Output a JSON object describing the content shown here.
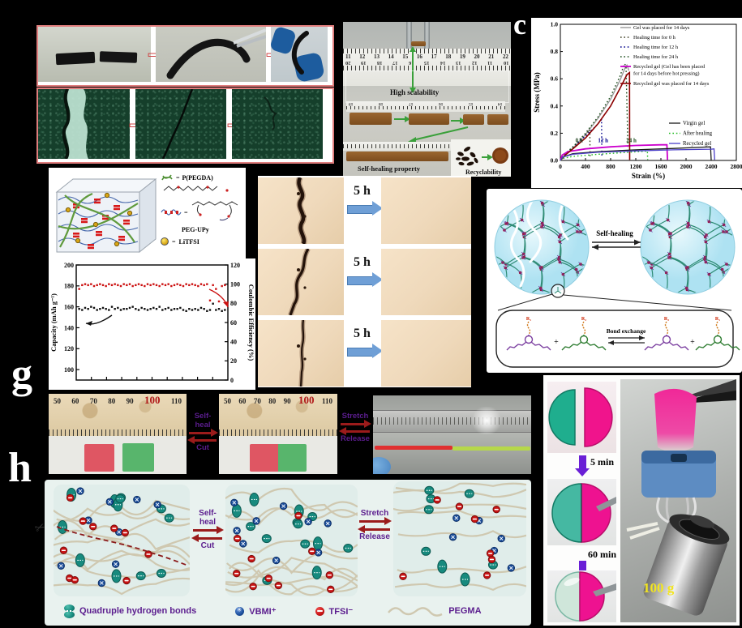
{
  "figure": {
    "panel_labels": {
      "c": "c",
      "g": "g",
      "h": "h"
    },
    "panel_b": {
      "label_scalability": "High scalability",
      "label_selfheal": "Self-healing property",
      "label_recycle": "Recyclability",
      "ruler_top_numbers": [
        "11",
        "12",
        "13",
        "14",
        "15",
        "16",
        "17",
        "18",
        "19",
        "20",
        "21",
        "22"
      ],
      "ruler_mirror_numbers": [
        "20",
        "19",
        "18",
        "17",
        "16",
        "15",
        "14",
        "13",
        "12",
        "11",
        "10"
      ],
      "ruler_mid_numbers": [
        "19",
        "18",
        "17",
        "16",
        "15",
        "14"
      ]
    },
    "panel_d": {
      "eq": "=",
      "label_pegda": "P(PEGDA)",
      "label_pegupy": "PEG-UPy",
      "label_litfsi": "LiTFSI"
    },
    "panel_f": {
      "arrow_label": "5 h"
    },
    "panel_sh": {
      "self_healing": "Self-healing",
      "bond_exchange": "Bond exchange",
      "plus": "+",
      "r1": "R₁",
      "r2": "R₂"
    },
    "panel_g": {
      "self_heal": "Self-heal",
      "cut": "Cut",
      "stretch": "Stretch",
      "release": "Release",
      "ruler_numbers": [
        "50",
        "60",
        "70",
        "80",
        "90",
        "100",
        "110"
      ]
    },
    "panel_h": {
      "self_heal": "Self-heal",
      "cut": "Cut",
      "stretch": "Stretch",
      "release": "Release",
      "legend_quad": "Quadruple hydrogen bonds",
      "legend_vbmi": "VBMI⁺",
      "legend_tfsi": "TFSI⁻",
      "legend_pegma": "PEGMA"
    },
    "panel_i": {
      "t_5min": "5 min",
      "t_60min": "60 min",
      "weight": "100 g"
    }
  },
  "chart_data": [
    {
      "id": "stress_strain",
      "type": "line",
      "xlabel": "Strain (%)",
      "ylabel": "Stress (MPa)",
      "xlim": [
        0,
        2800
      ],
      "ylim": [
        0.0,
        1.0
      ],
      "xticks": [
        0,
        400,
        800,
        1200,
        1600,
        2000,
        2400,
        2800
      ],
      "yticks": [
        0.0,
        0.2,
        0.4,
        0.6,
        0.8,
        1.0
      ],
      "legend_position": "upper right and lower right",
      "annotations": [
        {
          "text": "0 h",
          "x": 300,
          "y": 0.135,
          "color": "#224422"
        },
        {
          "text": "12 h",
          "x": 680,
          "y": 0.135,
          "color": "#00008b"
        },
        {
          "text": "24 h",
          "x": 1130,
          "y": 0.135,
          "color": "#1a4d1a"
        }
      ],
      "series": [
        {
          "name": "Gel was placed for 14 days",
          "color": "#9a9a9a",
          "style": "solid",
          "width": 1.4,
          "points": [
            [
              0,
              0
            ],
            [
              80,
              0.045
            ],
            [
              200,
              0.09
            ],
            [
              400,
              0.19
            ],
            [
              600,
              0.31
            ],
            [
              800,
              0.45
            ],
            [
              950,
              0.59
            ],
            [
              1030,
              0.68
            ],
            [
              1060,
              0.7
            ],
            [
              1090,
              0.66
            ]
          ]
        },
        {
          "name": "Healing time for 0 h",
          "color": "#3b3b1f",
          "style": "dotted",
          "width": 1.4,
          "points": [
            [
              0,
              0
            ],
            [
              80,
              0.045
            ],
            [
              200,
              0.09
            ],
            [
              350,
              0.155
            ],
            [
              440,
              0.21
            ],
            [
              470,
              0.225
            ],
            [
              472,
              0.02
            ]
          ]
        },
        {
          "name": "Healing time for 12 h",
          "color": "#00008b",
          "style": "dotted",
          "width": 1.4,
          "points": [
            [
              0,
              0
            ],
            [
              80,
              0.05
            ],
            [
              200,
              0.1
            ],
            [
              400,
              0.18
            ],
            [
              560,
              0.25
            ],
            [
              655,
              0.3
            ],
            [
              660,
              0.02
            ]
          ]
        },
        {
          "name": "Healing time for 24 h",
          "color": "#1a4d1a",
          "style": "dotted",
          "width": 1.4,
          "points": [
            [
              0,
              0
            ],
            [
              80,
              0.05
            ],
            [
              200,
              0.1
            ],
            [
              400,
              0.2
            ],
            [
              600,
              0.32
            ],
            [
              800,
              0.47
            ],
            [
              950,
              0.62
            ],
            [
              1020,
              0.71
            ],
            [
              1045,
              0.695
            ],
            [
              1075,
              0.1
            ]
          ]
        },
        {
          "name": "Recycled gel (Gel has been placed for 14 days before hot pressing)",
          "color": "#cc00cc",
          "style": "solid",
          "width": 1.8,
          "points": [
            [
              0,
              0
            ],
            [
              30,
              0.04
            ],
            [
              120,
              0.065
            ],
            [
              400,
              0.085
            ],
            [
              800,
              0.1
            ],
            [
              1200,
              0.11
            ],
            [
              1600,
              0.115
            ],
            [
              1695,
              0.115
            ],
            [
              1705,
              0.005
            ]
          ]
        },
        {
          "name": "Recycled gel was placed for 14 days",
          "color": "#8b0000",
          "style": "solid",
          "width": 1.6,
          "points": [
            [
              0,
              0
            ],
            [
              80,
              0.04
            ],
            [
              200,
              0.085
            ],
            [
              400,
              0.165
            ],
            [
              600,
              0.27
            ],
            [
              800,
              0.4
            ],
            [
              950,
              0.53
            ],
            [
              1060,
              0.63
            ],
            [
              1100,
              0.645
            ],
            [
              1103,
              0.005
            ]
          ]
        },
        {
          "name": "Virgin gel",
          "color": "#1a1a1a",
          "style": "solid",
          "width": 1.3,
          "points": [
            [
              0,
              0
            ],
            [
              40,
              0.025
            ],
            [
              200,
              0.05
            ],
            [
              600,
              0.065
            ],
            [
              1200,
              0.078
            ],
            [
              1800,
              0.088
            ],
            [
              2300,
              0.098
            ],
            [
              2390,
              0.1
            ],
            [
              2400,
              0.005
            ]
          ]
        },
        {
          "name": "After healing",
          "color": "#22bb22",
          "style": "dotted",
          "width": 1.4,
          "points": [
            [
              0,
              0
            ],
            [
              40,
              0.015
            ],
            [
              200,
              0.03
            ],
            [
              600,
              0.045
            ],
            [
              1000,
              0.058
            ],
            [
              1350,
              0.068
            ],
            [
              1385,
              0.07
            ],
            [
              1390,
              0.005
            ]
          ]
        },
        {
          "name": "Recycled gel",
          "color": "#4b3fc8",
          "style": "solid",
          "width": 1.3,
          "points": [
            [
              0,
              0
            ],
            [
              40,
              0.025
            ],
            [
              200,
              0.045
            ],
            [
              600,
              0.06
            ],
            [
              1200,
              0.07
            ],
            [
              1800,
              0.078
            ],
            [
              2400,
              0.083
            ],
            [
              2445,
              0.085
            ],
            [
              2455,
              0.005
            ]
          ]
        }
      ]
    },
    {
      "id": "cycling",
      "type": "scatter",
      "xlabel": "",
      "ylabel_left": "Capacity (mAh g⁻¹)",
      "ylabel_right": "Coulombic Efficiency (%)",
      "ylim_left": [
        90,
        200
      ],
      "ylim_right": [
        0,
        120
      ],
      "yticks_left": [
        100,
        120,
        140,
        160,
        180,
        200
      ],
      "yticks_right": [
        0,
        20,
        40,
        60,
        80,
        100,
        120
      ],
      "series": [
        {
          "name": "Capacity",
          "color": "#111111",
          "values": [
            158,
            157,
            159,
            158,
            160,
            159,
            157,
            158,
            159,
            158,
            157,
            160,
            158,
            159,
            157,
            158,
            158,
            159,
            160,
            158,
            157,
            159,
            158,
            157,
            158,
            159,
            158,
            160,
            157,
            158,
            159,
            157,
            158,
            158,
            159,
            157,
            156,
            158,
            157,
            158,
            157,
            159,
            158,
            156,
            157,
            163,
            157,
            158,
            156,
            157
          ]
        },
        {
          "name": "Coulombic Efficiency",
          "color": "#cc1111",
          "values": [
            95,
            99,
            100,
            99,
            100,
            98,
            99,
            100,
            99,
            98,
            100,
            99,
            100,
            99,
            98,
            100,
            99,
            100,
            98,
            99,
            100,
            99,
            98,
            100,
            99,
            100,
            99,
            98,
            100,
            99,
            100,
            98,
            99,
            100,
            99,
            98,
            100,
            99,
            100,
            99,
            98,
            100,
            99,
            100,
            83,
            99,
            95,
            82,
            98,
            99
          ]
        }
      ]
    }
  ]
}
